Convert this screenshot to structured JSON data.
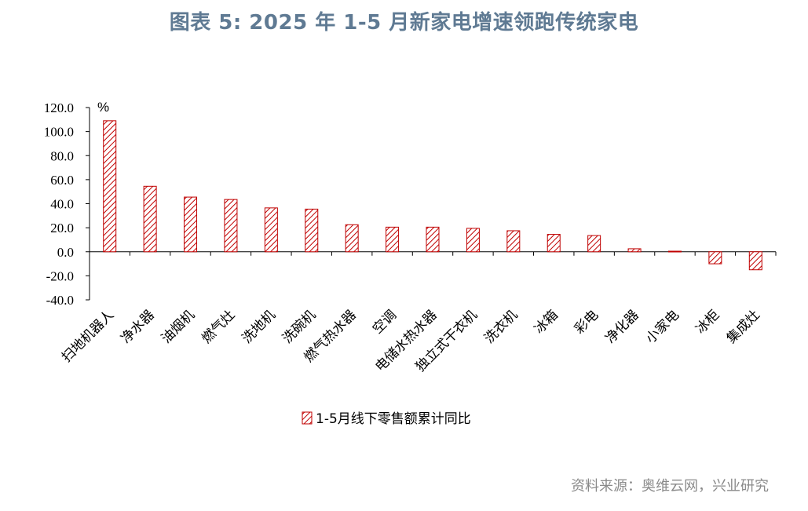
{
  "title": "图表  5: 2025 年 1-5 月新家电增速领跑传统家电",
  "source": "资料来源：奥维云网，兴业研究",
  "colors": {
    "bar": "#c00000",
    "title": "#5f7a93"
  },
  "chart_data": {
    "type": "bar",
    "unit": "%",
    "ylim": [
      -40,
      120
    ],
    "yticks": [
      "120.0",
      "100.0",
      "80.0",
      "60.0",
      "40.0",
      "20.0",
      "0.0",
      "-20.0",
      "-40.0"
    ],
    "categories": [
      "扫地机器人",
      "净水器",
      "油烟机",
      "燃气灶",
      "洗地机",
      "洗碗机",
      "燃气热水器",
      "空调",
      "电储水热水器",
      "独立式干衣机",
      "洗衣机",
      "冰箱",
      "彩电",
      "净化器",
      "小家电",
      "冰柜",
      "集成灶"
    ],
    "series": [
      {
        "name": "1-5月线下零售额累计同比",
        "values": [
          109,
          54.5,
          45.5,
          43.5,
          36.5,
          35.5,
          22.5,
          20.5,
          20.5,
          19.5,
          17.5,
          14.5,
          13.5,
          2.5,
          0.5,
          -10,
          -15
        ]
      }
    ],
    "legend_position": "bottom",
    "grid": false
  }
}
